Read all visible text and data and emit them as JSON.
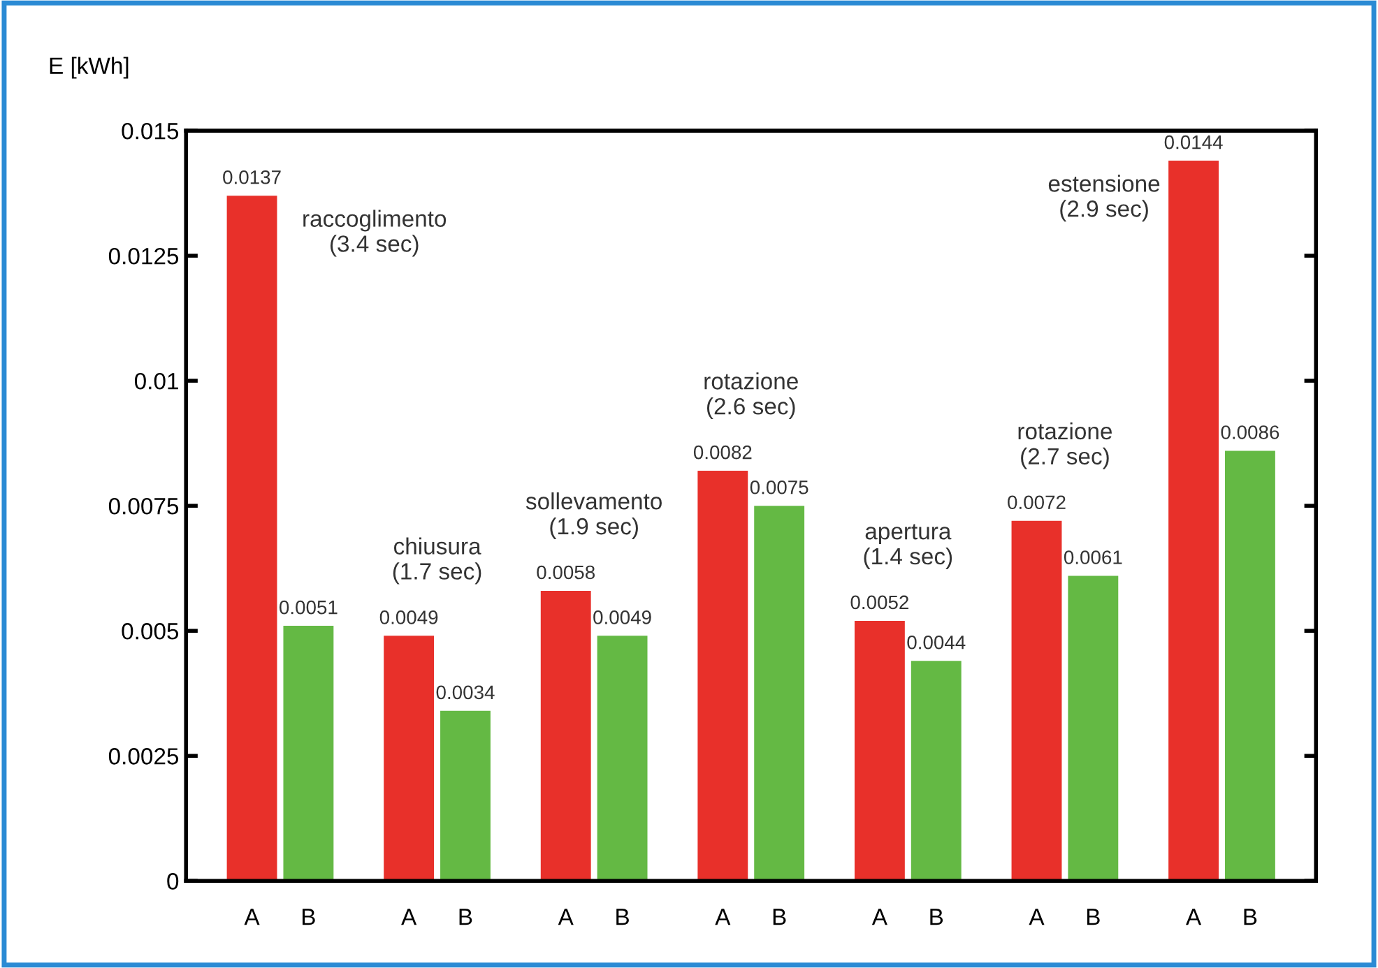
{
  "chart_data": {
    "type": "bar",
    "ylabel": "E [kWh]",
    "categories": [
      null,
      null,
      null,
      null,
      null,
      null,
      null
    ],
    "series": [
      {
        "name": "A",
        "color": "#e8302a",
        "values": [
          0.0137,
          0.0049,
          0.0058,
          0.0082,
          0.0052,
          0.0072,
          0.0144
        ]
      },
      {
        "name": "B",
        "color": "#64b944",
        "values": [
          0.0051,
          0.0034,
          0.0049,
          0.0075,
          0.0044,
          0.0061,
          0.0086
        ]
      }
    ],
    "ylim": [
      0,
      0.015
    ],
    "yticks": [
      0,
      0.0025,
      0.005,
      0.0075,
      0.01,
      0.0125,
      0.015
    ],
    "data_labels": true,
    "grid": false,
    "legend": false,
    "annotations": [
      "raccoglimento\n(3.4 sec)",
      "chiusura\n(1.7 sec)",
      "sollevamento\n(1.9 sec)",
      "rotazione\n(2.6 sec)",
      "apertura\n(1.4 sec)",
      "rotazione\n(2.7 sec)",
      "estensione\n(2.9 sec)"
    ]
  }
}
